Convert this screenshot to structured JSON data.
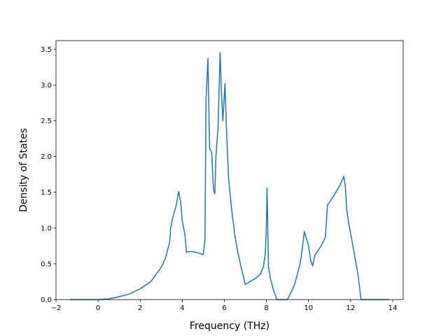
{
  "chart_data": {
    "type": "line",
    "title": "",
    "xlabel": "Frequency (THz)",
    "ylabel": "Density of States",
    "xlim": [
      -2,
      14.5
    ],
    "ylim": [
      0,
      3.62
    ],
    "grid": false,
    "x_ticks": [
      -2,
      0,
      2,
      4,
      6,
      8,
      10,
      12,
      14
    ],
    "x_tick_labels": [
      "−2",
      "0",
      "2",
      "4",
      "6",
      "8",
      "10",
      "12",
      "14"
    ],
    "y_ticks": [
      0.0,
      0.5,
      1.0,
      1.5,
      2.0,
      2.5,
      3.0,
      3.5
    ],
    "y_tick_labels": [
      "0.0",
      "0.5",
      "1.0",
      "1.5",
      "2.0",
      "2.5",
      "3.0",
      "3.5"
    ],
    "series": [
      {
        "color": "#1f77b4",
        "x": [
          -1.3,
          -0.5,
          0.0,
          0.5,
          1.0,
          1.5,
          2.0,
          2.5,
          3.0,
          3.2,
          3.4,
          3.45,
          3.55,
          3.7,
          3.83,
          3.93,
          4.0,
          4.13,
          4.2,
          4.3,
          4.5,
          4.8,
          5.0,
          5.08,
          5.13,
          5.22,
          5.3,
          5.4,
          5.48,
          5.55,
          5.6,
          5.7,
          5.8,
          5.87,
          5.93,
          6.03,
          6.1,
          6.2,
          6.35,
          6.5,
          6.6,
          6.8,
          7.0,
          7.2,
          7.5,
          7.7,
          7.85,
          7.95,
          7.99,
          8.03,
          8.1,
          8.2,
          8.35,
          8.5,
          8.7,
          9.0,
          9.25,
          9.35,
          9.6,
          9.7,
          9.8,
          10.0,
          10.1,
          10.2,
          10.3,
          10.6,
          10.8,
          10.9,
          11.2,
          11.5,
          11.68,
          11.75,
          11.82,
          11.92,
          12.05,
          12.2,
          12.35,
          12.5,
          12.6,
          13.0,
          13.3,
          13.8
        ],
        "y": [
          0.0,
          0.0,
          0.0,
          0.01,
          0.04,
          0.08,
          0.15,
          0.25,
          0.45,
          0.58,
          0.8,
          1.0,
          1.15,
          1.3,
          1.51,
          1.35,
          1.1,
          0.9,
          0.66,
          0.67,
          0.67,
          0.65,
          0.63,
          0.85,
          2.8,
          3.37,
          2.12,
          2.05,
          1.55,
          1.48,
          2.0,
          2.4,
          3.45,
          2.85,
          2.5,
          3.02,
          2.4,
          1.7,
          1.25,
          0.9,
          0.72,
          0.45,
          0.21,
          0.25,
          0.3,
          0.35,
          0.45,
          0.65,
          0.95,
          1.56,
          0.45,
          0.28,
          0.12,
          0.0,
          0.0,
          0.0,
          0.15,
          0.22,
          0.5,
          0.7,
          0.95,
          0.76,
          0.55,
          0.47,
          0.62,
          0.75,
          0.87,
          1.32,
          1.45,
          1.6,
          1.72,
          1.58,
          1.25,
          1.05,
          0.85,
          0.6,
          0.35,
          0.0,
          0.0,
          0.0,
          0.0,
          0.0
        ]
      }
    ]
  }
}
